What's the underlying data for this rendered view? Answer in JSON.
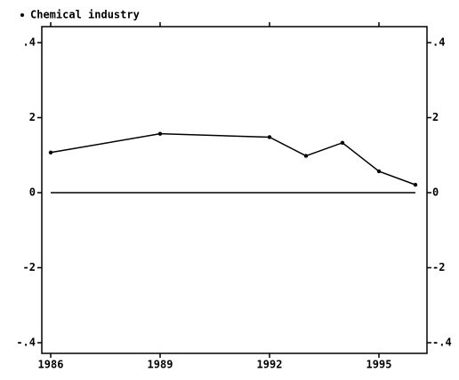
{
  "chart_data": {
    "type": "line",
    "x": [
      1986,
      1989,
      1992,
      1993,
      1994,
      1995,
      1996
    ],
    "series": [
      {
        "name": "Chemical industry",
        "color": "#000000",
        "values": [
          0.107,
          0.157,
          0.148,
          0.098,
          0.133,
          0.057,
          0.021
        ]
      }
    ],
    "xlim": [
      1986,
      1996
    ],
    "xticks": [
      1986,
      1989,
      1992,
      1995
    ],
    "ylim": [
      -0.4,
      0.4
    ],
    "yticks": [
      {
        "value": 0.4,
        "label": ".4"
      },
      {
        "value": 0.2,
        "label": "2"
      },
      0,
      {
        "value": -0.2,
        "label": "-2"
      },
      {
        "value": -0.4,
        "label": "-.4"
      }
    ],
    "zero_line": true,
    "right_axis": true,
    "legend": "top-left"
  }
}
